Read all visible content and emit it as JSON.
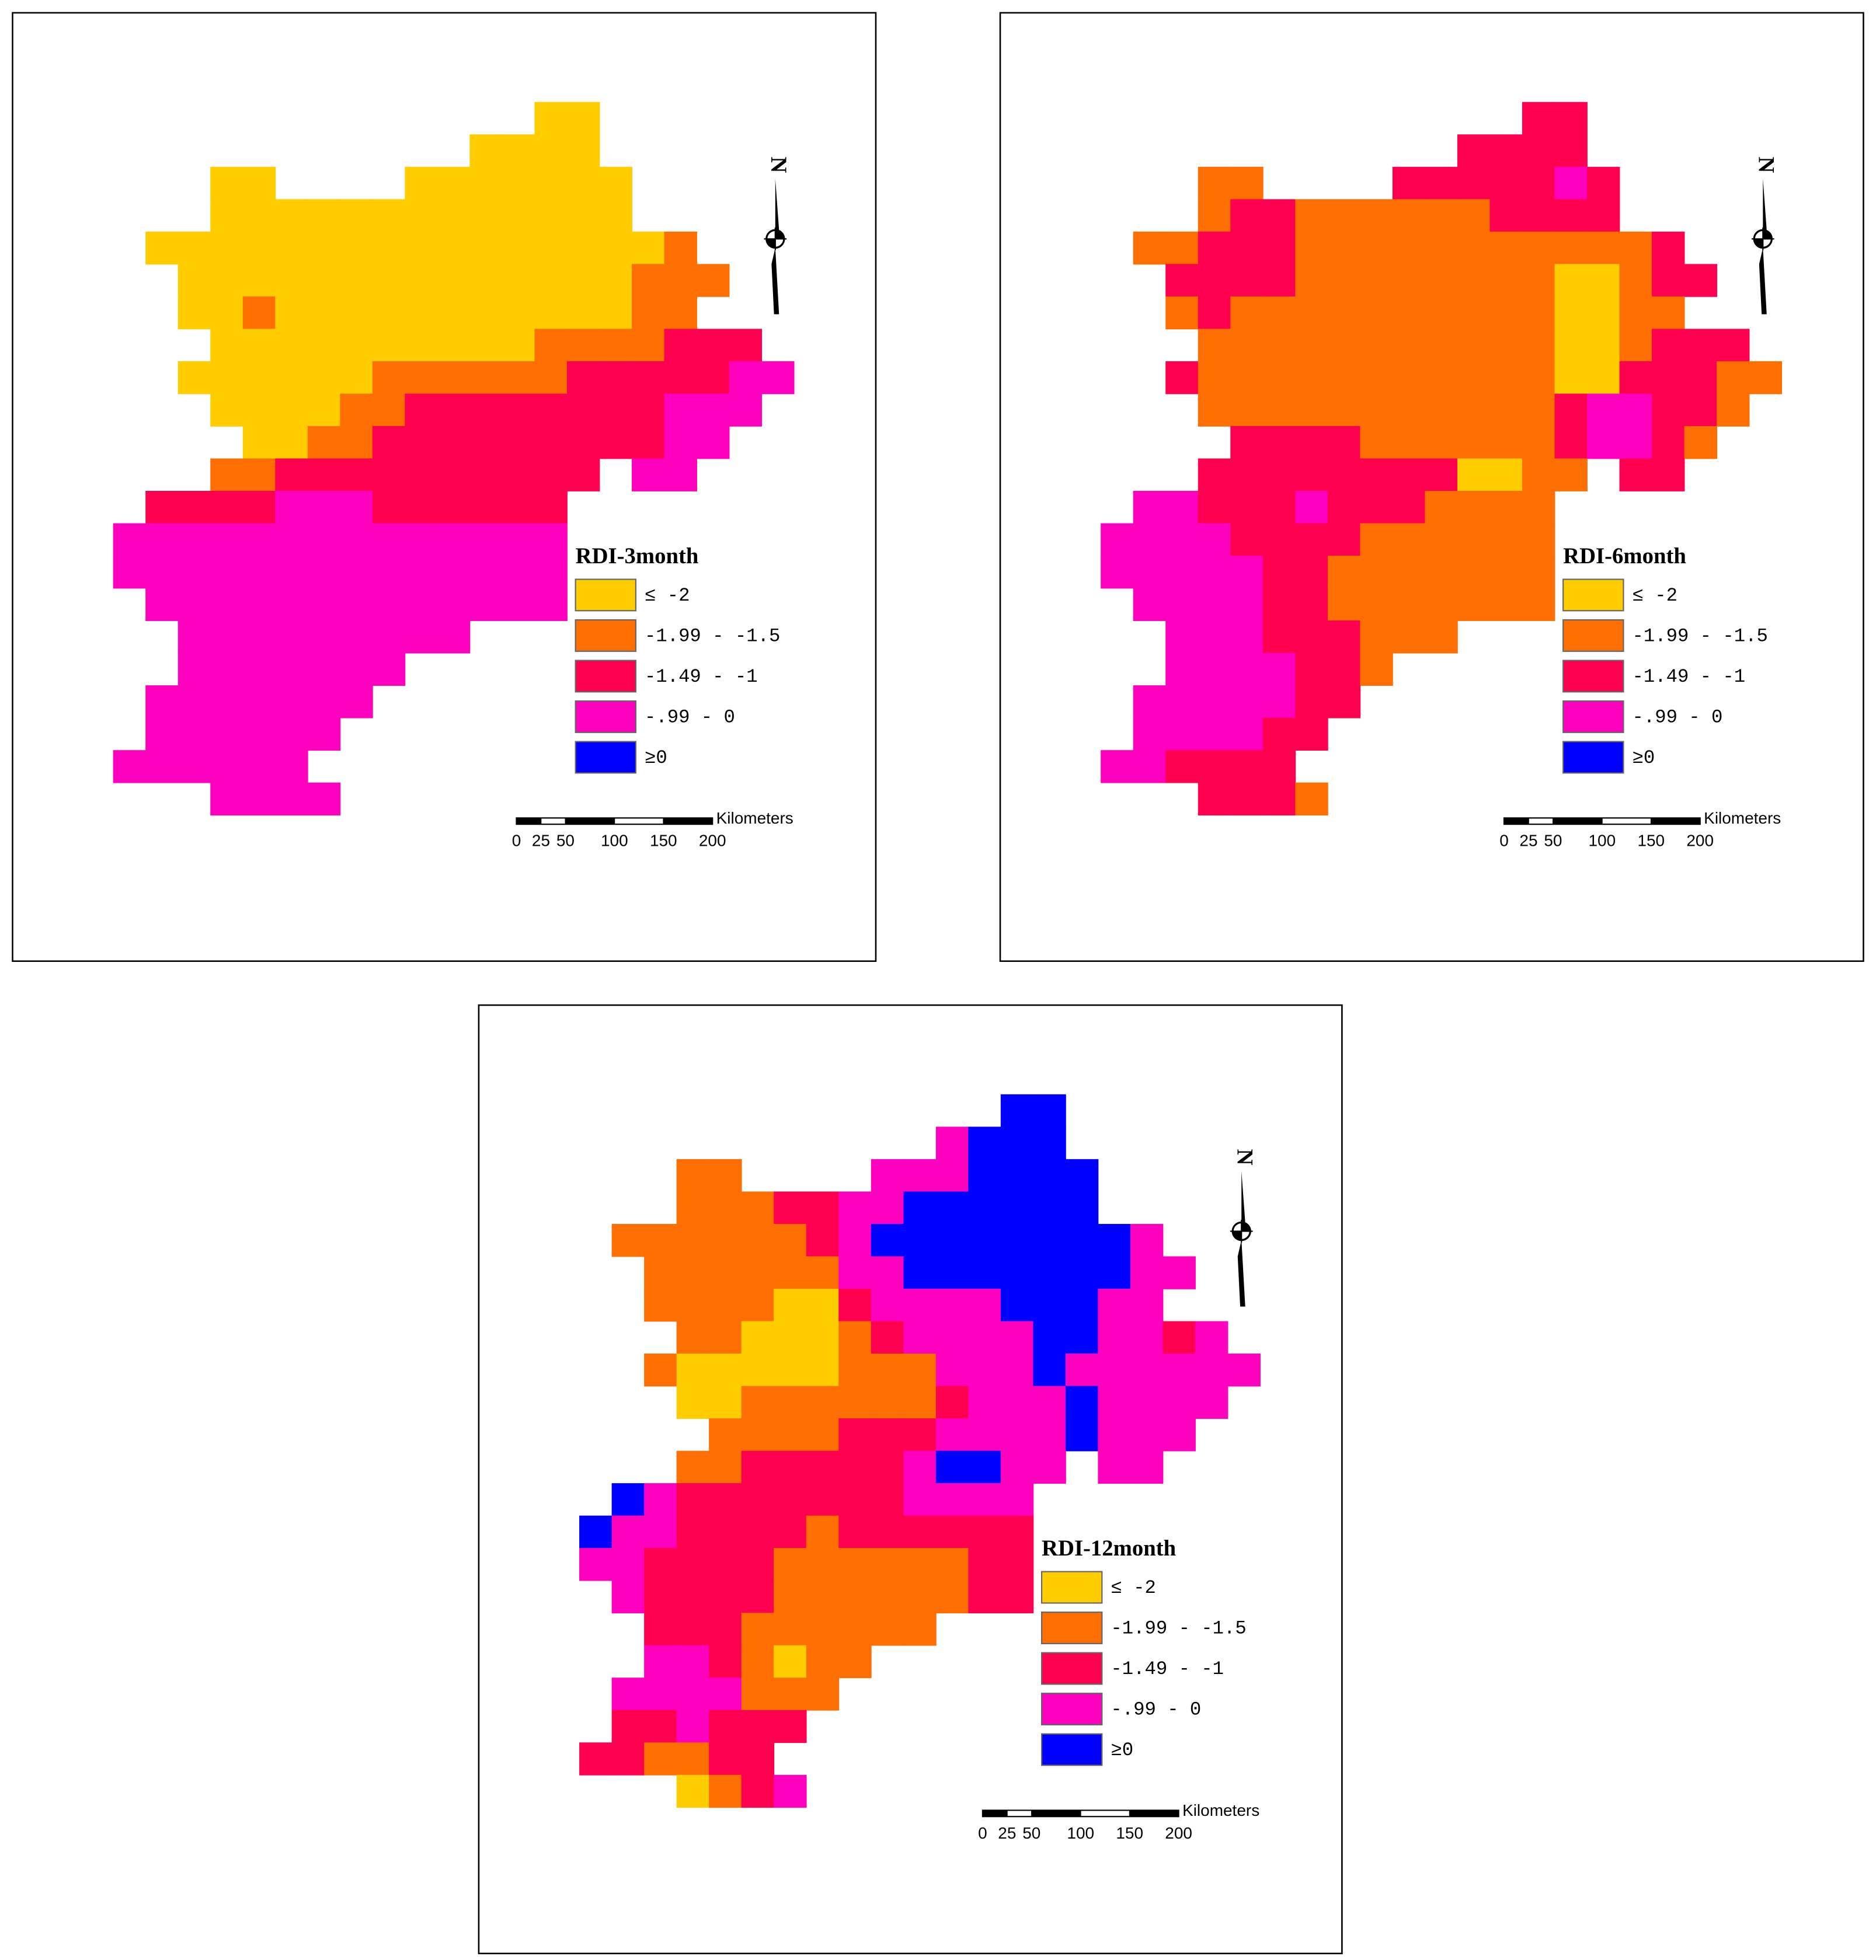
{
  "panels": [
    {
      "legend_title": "RDI-3month"
    },
    {
      "legend_title": "RDI-6month"
    },
    {
      "legend_title": "RDI-12month"
    }
  ],
  "legend": {
    "items": [
      {
        "label": "≤ -2",
        "color": "#ffcc00"
      },
      {
        "label": "-1.99 - -1.5",
        "color": "#ff6e00"
      },
      {
        "label": "-1.49 - -1",
        "color": "#ff0050"
      },
      {
        "label": "-.99 - 0",
        "color": "#ff00bf"
      },
      {
        "label": "≥0",
        "color": "#0000ff"
      }
    ]
  },
  "scale": {
    "unit": "Kilometers",
    "ticks": [
      0,
      25,
      50,
      100,
      150,
      200
    ]
  },
  "north": "N"
}
